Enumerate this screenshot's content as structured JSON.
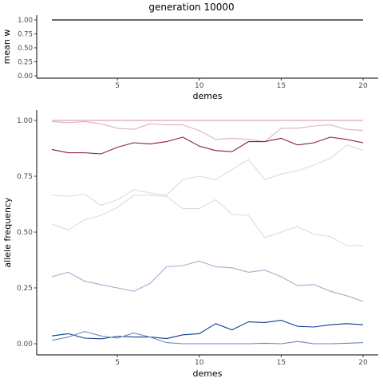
{
  "figure_title": "generation 10000",
  "chart_data": [
    {
      "type": "line",
      "title": "generation 10000",
      "xlabel": "demes",
      "ylabel": "mean w",
      "xlim": [
        1,
        20
      ],
      "ylim": [
        0,
        1
      ],
      "xticks": [
        5,
        10,
        15,
        20
      ],
      "yticks": [
        0.0,
        0.25,
        0.5,
        0.75,
        1.0
      ],
      "yticklabels": [
        "0.00",
        "0.25",
        "0.50",
        "0.75",
        "1.00"
      ],
      "grid": false,
      "series": [
        {
          "color": "#111111",
          "x": [
            1,
            2,
            3,
            4,
            5,
            6,
            7,
            8,
            9,
            10,
            11,
            12,
            13,
            14,
            15,
            16,
            17,
            18,
            19,
            20
          ],
          "values": [
            1,
            1,
            1,
            1,
            1,
            1,
            1,
            1,
            1,
            1,
            1,
            1,
            1,
            1,
            1,
            1,
            1,
            1,
            1,
            1
          ]
        }
      ]
    },
    {
      "type": "line",
      "xlabel": "demes",
      "ylabel": "allele frequency",
      "xlim": [
        1,
        20
      ],
      "ylim": [
        0,
        1
      ],
      "xticks": [
        5,
        10,
        15,
        20
      ],
      "yticks": [
        0.0,
        0.25,
        0.5,
        0.75,
        1.0
      ],
      "yticklabels": [
        "0.00",
        "0.25",
        "0.50",
        "0.75",
        "1.00"
      ],
      "grid": false,
      "series": [
        {
          "color": "#d98ea6",
          "x": [
            1,
            2,
            3,
            4,
            5,
            6,
            7,
            8,
            9,
            10,
            11,
            12,
            13,
            14,
            15,
            16,
            17,
            18,
            19,
            20
          ],
          "values": [
            1.0,
            1.0,
            1.0,
            1.0,
            1.0,
            1.0,
            1.0,
            1.0,
            1.0,
            1.0,
            1.0,
            1.0,
            1.0,
            1.0,
            1.0,
            1.0,
            1.0,
            1.0,
            1.0,
            1.0
          ]
        },
        {
          "color": "#d8b4c2",
          "x": [
            1,
            2,
            3,
            4,
            5,
            6,
            7,
            8,
            9,
            10,
            11,
            12,
            13,
            14,
            15,
            16,
            17,
            18,
            19,
            20
          ],
          "values": [
            0.995,
            0.99,
            0.995,
            0.985,
            0.965,
            0.96,
            0.985,
            0.98,
            0.98,
            0.955,
            0.915,
            0.92,
            0.915,
            0.905,
            0.965,
            0.965,
            0.975,
            0.98,
            0.96,
            0.955
          ]
        },
        {
          "color": "#8b1a4a",
          "x": [
            1,
            2,
            3,
            4,
            5,
            6,
            7,
            8,
            9,
            10,
            11,
            12,
            13,
            14,
            15,
            16,
            17,
            18,
            19,
            20
          ],
          "values": [
            0.87,
            0.855,
            0.855,
            0.85,
            0.88,
            0.9,
            0.895,
            0.905,
            0.925,
            0.885,
            0.865,
            0.86,
            0.905,
            0.905,
            0.92,
            0.89,
            0.9,
            0.925,
            0.915,
            0.9
          ]
        },
        {
          "color": "#dcdcdc",
          "x": [
            1,
            2,
            3,
            4,
            5,
            6,
            7,
            8,
            9,
            10,
            11,
            12,
            13,
            14,
            15,
            16,
            17,
            18,
            19,
            20
          ],
          "values": [
            0.665,
            0.66,
            0.67,
            0.62,
            0.645,
            0.69,
            0.675,
            0.665,
            0.735,
            0.75,
            0.735,
            0.78,
            0.825,
            0.735,
            0.76,
            0.775,
            0.8,
            0.83,
            0.89,
            0.865
          ]
        },
        {
          "color": "#dcdcdc",
          "x": [
            1,
            2,
            3,
            4,
            5,
            6,
            7,
            8,
            9,
            10,
            11,
            12,
            13,
            14,
            15,
            16,
            17,
            18,
            19,
            20
          ],
          "values": [
            0.535,
            0.51,
            0.555,
            0.575,
            0.61,
            0.665,
            0.665,
            0.66,
            0.605,
            0.605,
            0.645,
            0.58,
            0.575,
            0.475,
            0.5,
            0.525,
            0.49,
            0.48,
            0.44,
            0.44
          ]
        },
        {
          "color": "#aaaacc",
          "x": [
            1,
            2,
            3,
            4,
            5,
            6,
            7,
            8,
            9,
            10,
            11,
            12,
            13,
            14,
            15,
            16,
            17,
            18,
            19,
            20
          ],
          "values": [
            0.3,
            0.32,
            0.28,
            0.265,
            0.25,
            0.235,
            0.27,
            0.345,
            0.35,
            0.37,
            0.345,
            0.34,
            0.32,
            0.33,
            0.3,
            0.26,
            0.265,
            0.235,
            0.215,
            0.19
          ]
        },
        {
          "color": "#0b3c8c",
          "x": [
            1,
            2,
            3,
            4,
            5,
            6,
            7,
            8,
            9,
            10,
            11,
            12,
            13,
            14,
            15,
            16,
            17,
            18,
            19,
            20
          ],
          "values": [
            0.035,
            0.045,
            0.025,
            0.022,
            0.033,
            0.03,
            0.03,
            0.023,
            0.04,
            0.045,
            0.09,
            0.062,
            0.098,
            0.095,
            0.105,
            0.078,
            0.075,
            0.085,
            0.09,
            0.085
          ]
        },
        {
          "color": "#6f86bd",
          "x": [
            1,
            2,
            3,
            4,
            5,
            6,
            7,
            8,
            9,
            10,
            11,
            12,
            13,
            14,
            15,
            16,
            17,
            18,
            19,
            20
          ],
          "values": [
            0.015,
            0.03,
            0.055,
            0.035,
            0.025,
            0.048,
            0.03,
            0.005,
            0.0,
            0.0,
            0.0,
            0.0,
            0.0,
            0.002,
            0.0,
            0.01,
            0.0,
            0.0,
            0.002,
            0.005
          ]
        }
      ]
    }
  ]
}
